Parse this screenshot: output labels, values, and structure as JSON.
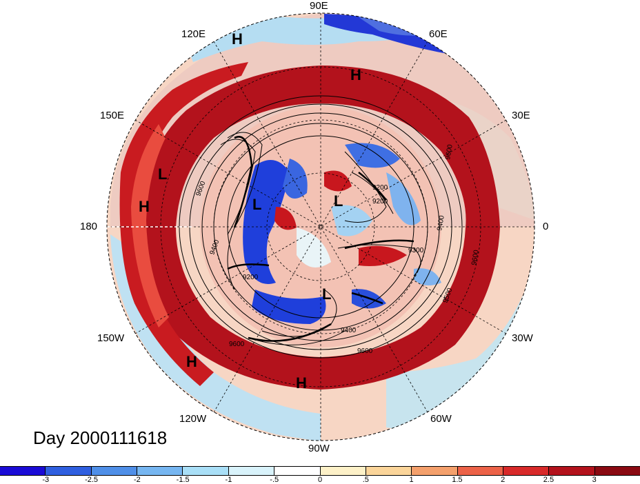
{
  "map": {
    "title": "Day 2000111618",
    "longitude_labels": [
      "90E",
      "60E",
      "30E",
      "0",
      "30W",
      "60W",
      "90W",
      "120W",
      "150W",
      "180",
      "150E",
      "120E"
    ],
    "pressure_centers": [
      "H",
      "H",
      "L",
      "H",
      "L",
      "L",
      "L",
      "H",
      "H"
    ],
    "contour_labels": [
      "9600",
      "9400",
      "9200",
      "9300",
      "9500",
      "9600",
      "9200",
      "9400",
      "9600",
      "9600",
      "9400",
      "9200",
      "9600"
    ],
    "colors": {
      "strong_positive": "#b3121c",
      "positive": "#e8473d",
      "weak_positive": "#f7a98c",
      "neutral": "#fdf7e0",
      "weak_negative": "#bfe6f6",
      "negative": "#4a8de6",
      "strong_negative": "#1a2ed8"
    }
  },
  "colorbar": {
    "ticks": [
      "-3",
      "-2.5",
      "-2",
      "-1.5",
      "-1",
      "-.5",
      "0",
      ".5",
      "1",
      "1.5",
      "2",
      "2.5",
      "3"
    ],
    "colors": [
      "#1a0bd6",
      "#2f5fe0",
      "#4f8fe8",
      "#76b6f1",
      "#a9dff7",
      "#d9f3fb",
      "#ffffff",
      "#fdf1c8",
      "#fbd59a",
      "#f4a06c",
      "#ec6248",
      "#d82a2a",
      "#b3121c",
      "#8a0a12"
    ]
  }
}
